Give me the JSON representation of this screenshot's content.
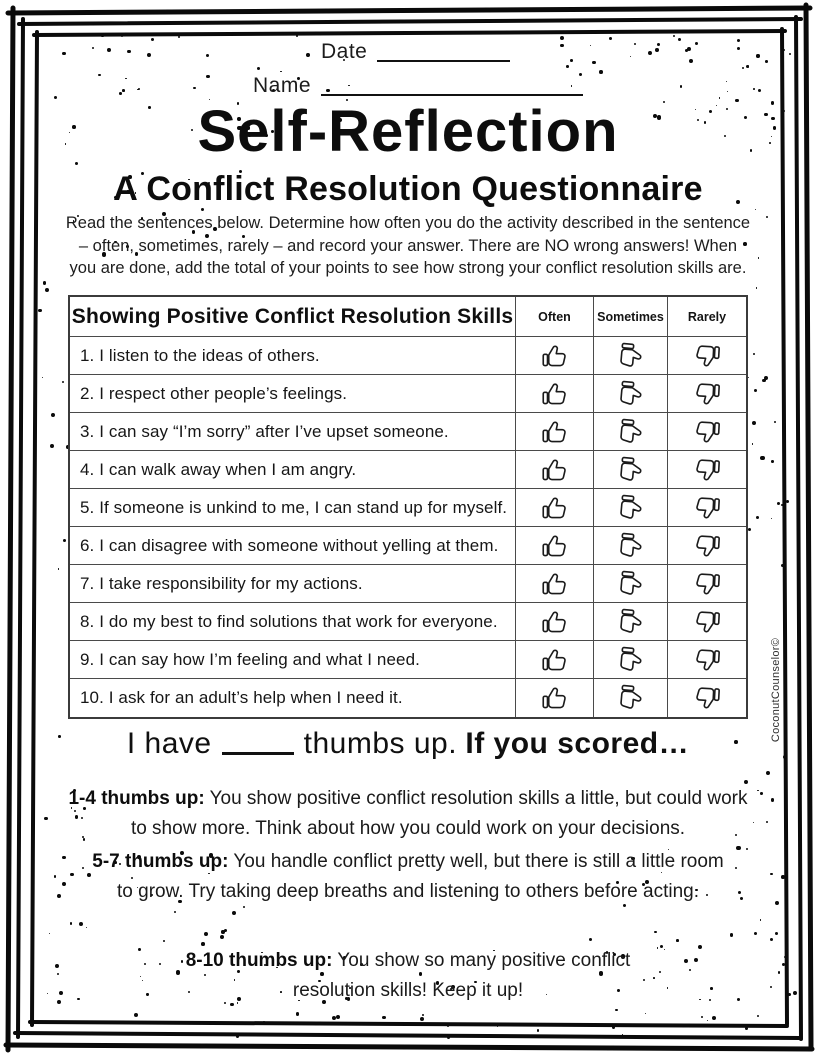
{
  "header": {
    "date_label": "Date",
    "name_label": "Name",
    "title": "Self-Reflection",
    "subtitle": "A Conflict Resolution Questionnaire",
    "instructions": [
      "Read the sentences below. Determine how often you do the activity described in the sentence",
      "– often, sometimes, rarely – and record your answer. There are NO wrong answers! When",
      "you are done, add the total of your points to see how strong your conflict resolution skills are."
    ]
  },
  "table": {
    "header": "Showing Positive Conflict Resolution Skills",
    "columns": [
      "Often",
      "Sometimes",
      "Rarely"
    ],
    "column_icons": [
      "thumb-up-icon",
      "thumb-sideways-icon",
      "thumb-down-icon"
    ],
    "rows": [
      "1. I listen to the ideas of others.",
      "2. I respect other people’s feelings.",
      "3. I can say “I’m sorry” after I’ve upset someone.",
      "4. I can walk away when I am angry.",
      "5. If someone is unkind to me, I can stand up for myself.",
      "6. I can disagree with someone without yelling at them.",
      "7. I take responsibility for my actions.",
      "8. I do my best to find solutions that work for everyone.",
      "9. I can say how I’m feeling and what I need.",
      "10. I ask for an adult’s help when I need it."
    ]
  },
  "score": {
    "prefix": "I have",
    "blank_value": "",
    "middle": "thumbs up.",
    "suffix": "If you scored…"
  },
  "results": [
    {
      "label": "1-4 thumbs up:",
      "text": "You show positive conflict resolution skills a little, but could work to show more. Think about how you could work on your decisions."
    },
    {
      "label": "5-7 thumbs up:",
      "text": "You handle conflict pretty well, but there is still a little room to grow. Try taking deep breaths and listening to others before acting."
    },
    {
      "label": "8-10 thumbs up:",
      "text": "You show so many positive conflict resolution skills! Keep it up!"
    }
  ],
  "footer": {
    "credit": "CoconutCounselor©"
  },
  "colors": {
    "ink": "#111111",
    "paper": "#ffffff",
    "table_border": "#3b3b3b"
  }
}
